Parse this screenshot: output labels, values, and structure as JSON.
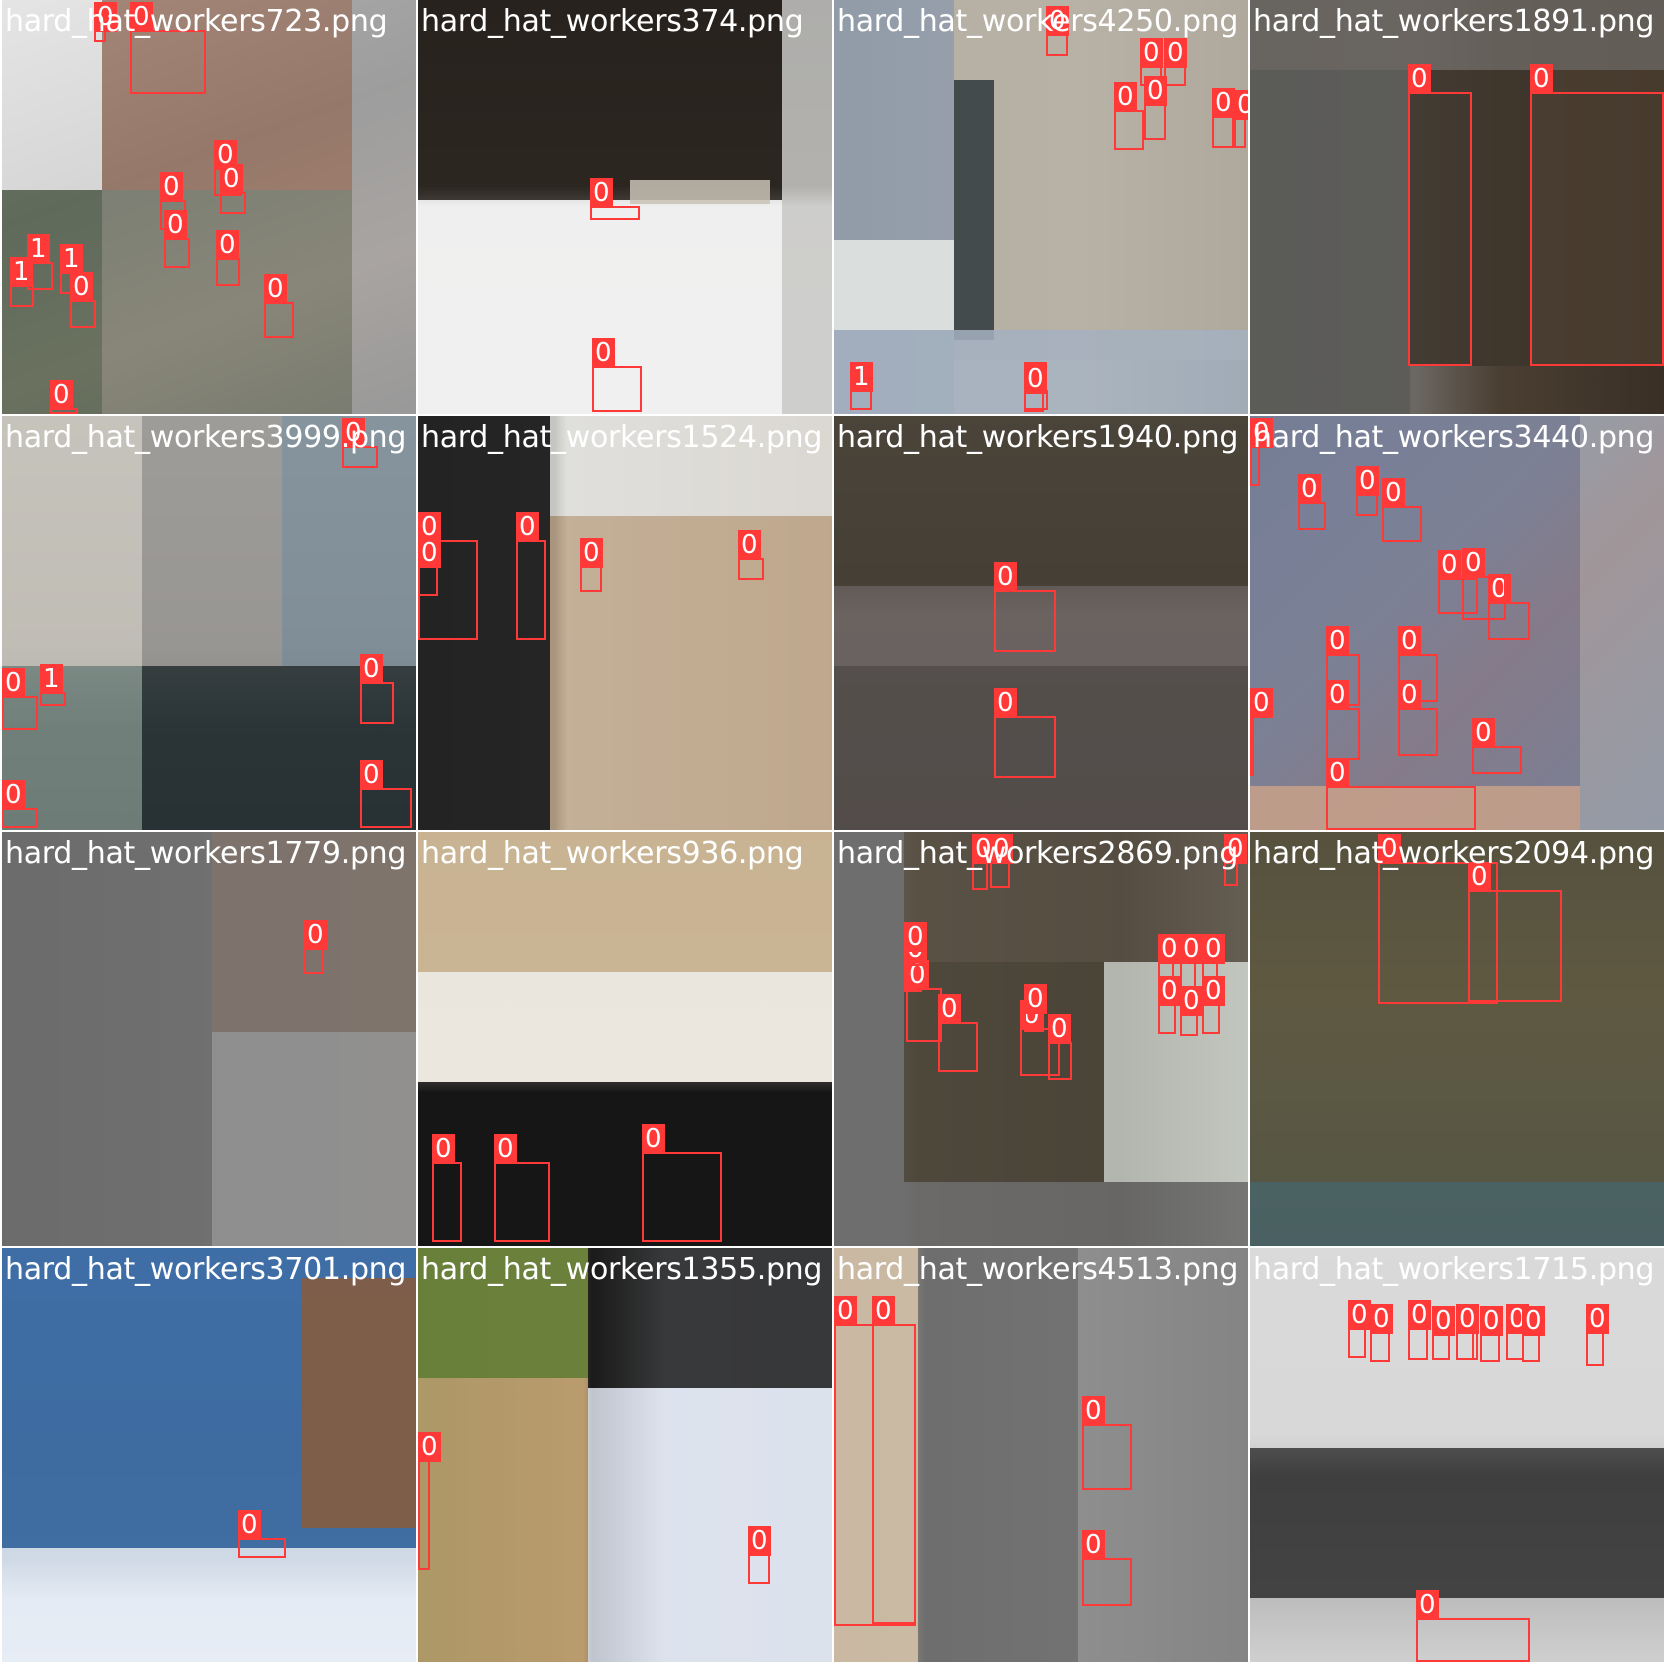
{
  "colors": {
    "box": "#ff3838",
    "label_text": "#ffffff",
    "title_text": "#ffffff"
  },
  "tiles": [
    {
      "title": "hard_hat_workers723.png",
      "bg": "linear-gradient(160deg,#d5d5d5 0%,#6e6e6e 40%,#b89a86 70%,#4f4f4f 100%)",
      "boxes": [
        {
          "label": "0"
        },
        {
          "label": "0"
        },
        {
          "label": "0"
        },
        {
          "label": "0"
        },
        {
          "label": "0"
        },
        {
          "label": "0"
        },
        {
          "label": "0"
        },
        {
          "label": "0"
        },
        {
          "label": "1"
        },
        {
          "label": "1"
        },
        {
          "label": "1"
        },
        {
          "label": "0"
        },
        {
          "label": "0"
        }
      ]
    },
    {
      "title": "hard_hat_workers374.png",
      "bg": "linear-gradient(180deg,#1a1715 0%,#3a332b 45%,#ecebe9 50%,#f2f2f2 100%)",
      "boxes": [
        {
          "label": "0"
        },
        {
          "label": "0"
        }
      ]
    },
    {
      "title": "hard_hat_workers4250.png",
      "bg": "linear-gradient(90deg,#9ca4b0 0%,#b9b9b5 30%,#c9c1b5 60%,#8e877e 100%)",
      "boxes": [
        {
          "label": "0"
        },
        {
          "label": "0"
        },
        {
          "label": "0"
        },
        {
          "label": "0"
        },
        {
          "label": "0"
        },
        {
          "label": "0"
        },
        {
          "label": "0"
        },
        {
          "label": "0"
        },
        {
          "label": "1"
        },
        {
          "label": "0"
        }
      ]
    },
    {
      "title": "hard_hat_workers1891.png",
      "bg": "linear-gradient(90deg,#5c5d5a 0%,#6b6761 40%,#4b3f33 60%,#3a2f25 100%)",
      "boxes": [
        {
          "label": "0"
        },
        {
          "label": "0"
        }
      ]
    },
    {
      "title": "hard_hat_workers3999.png",
      "bg": "linear-gradient(180deg,#b5b5b3 0%,#8f8e8a 55%,#2f3b3c 75%,#1c2426 100%)",
      "boxes": [
        {
          "label": "0"
        },
        {
          "label": "0"
        },
        {
          "label": "1"
        },
        {
          "label": "0"
        },
        {
          "label": "0"
        },
        {
          "label": "0"
        }
      ]
    },
    {
      "title": "hard_hat_workers1524.png",
      "bg": "linear-gradient(90deg,#1d1d1d 0%,#2b2b2b 33%,#d9d6d0 36%,#b9a48b 100%)",
      "boxes": [
        {
          "label": "0"
        },
        {
          "label": "0"
        },
        {
          "label": "0"
        },
        {
          "label": "0"
        },
        {
          "label": "0"
        }
      ]
    },
    {
      "title": "hard_hat_workers1940.png",
      "bg": "linear-gradient(180deg,#4a4338 0%,#2a2520 40%,#6b6460 48%,#5b5452 100%)",
      "boxes": [
        {
          "label": "0"
        },
        {
          "label": "0"
        }
      ]
    },
    {
      "title": "hard_hat_workers3440.png",
      "bg": "linear-gradient(135deg,#5f6c85 0%,#8a7d7a 40%,#c65a30 60%,#6f7888 100%)",
      "boxes": [
        {
          "label": "0"
        },
        {
          "label": "0"
        },
        {
          "label": "0"
        },
        {
          "label": "0"
        },
        {
          "label": "0"
        },
        {
          "label": "0"
        },
        {
          "label": "0"
        },
        {
          "label": "0"
        },
        {
          "label": "0"
        },
        {
          "label": "0"
        },
        {
          "label": "0"
        },
        {
          "label": "0"
        },
        {
          "label": "0"
        },
        {
          "label": "0"
        }
      ]
    },
    {
      "title": "hard_hat_workers1779.png",
      "bg": "linear-gradient(90deg,#6f6f6f 0%,#8a8a8a 50%,#9b9490 100%)",
      "boxes": [
        {
          "label": "0"
        }
      ]
    },
    {
      "title": "hard_hat_workers936.png",
      "bg": "linear-gradient(180deg,#c9b79c 0%,#d8c9b1 60%,#161616 63%,#1a1818 100%)",
      "boxes": [
        {
          "label": "0"
        },
        {
          "label": "0"
        },
        {
          "label": "0"
        }
      ]
    },
    {
      "title": "hard_hat_workers2869.png",
      "bg": "linear-gradient(90deg,#6e6e6e 0%,#6e6e6e 17%,#5a5148 20%,#3f3a30 70%,#9ea29a 100%)",
      "boxes": [
        {
          "label": "0"
        },
        {
          "label": "0"
        },
        {
          "label": "0"
        },
        {
          "label": "0"
        },
        {
          "label": "0"
        },
        {
          "label": "0"
        },
        {
          "label": "0"
        },
        {
          "label": "0"
        },
        {
          "label": "0"
        },
        {
          "label": "0"
        },
        {
          "label": "0"
        },
        {
          "label": "0"
        },
        {
          "label": "0"
        },
        {
          "label": "0"
        },
        {
          "label": "0"
        },
        {
          "label": "0"
        }
      ]
    },
    {
      "title": "hard_hat_workers2094.png",
      "bg": "linear-gradient(180deg,#3d3b38 0%,#7a6c4f 40%,#4a6060 80%,#3b4a4f 100%)",
      "boxes": [
        {
          "label": "0"
        },
        {
          "label": "0"
        }
      ]
    },
    {
      "title": "hard_hat_workers3701.png",
      "bg": "linear-gradient(180deg,#3d6da5 0%,#3f5f86 50%,#4b6c8e 75%,#d9e2ee 85%,#e8eef5 100%)",
      "boxes": [
        {
          "label": "0"
        }
      ]
    },
    {
      "title": "hard_hat_workers1355.png",
      "bg": "linear-gradient(90deg,#6f8a3a 0%,#c9a26a 40%,#1a1a1a 42%,#dfe4ee 60%,#d3d9e3 100%)",
      "boxes": [
        {
          "label": "0"
        },
        {
          "label": "0"
        }
      ]
    },
    {
      "title": "hard_hat_workers4513.png",
      "bg": "linear-gradient(90deg,#c6b6a2 0%,#c9bca6 20%,#6a6a6a 22%,#8b8b8b 60%,#4d4d4d 100%)",
      "boxes": [
        {
          "label": "0"
        },
        {
          "label": "0"
        },
        {
          "label": "0"
        },
        {
          "label": "0"
        }
      ]
    },
    {
      "title": "hard_hat_workers1715.png",
      "bg": "linear-gradient(180deg,#d9d9d9 0%,#cfcfcf 45%,#3d3d3d 55%,#5a5a5a 85%,#cfcfcf 100%)",
      "boxes": [
        {
          "label": "0"
        },
        {
          "label": "0"
        },
        {
          "label": "0"
        },
        {
          "label": "0"
        },
        {
          "label": "0"
        },
        {
          "label": "0"
        },
        {
          "label": "0"
        },
        {
          "label": "0"
        },
        {
          "label": "0"
        },
        {
          "label": "0"
        },
        {
          "label": "0"
        }
      ]
    }
  ]
}
